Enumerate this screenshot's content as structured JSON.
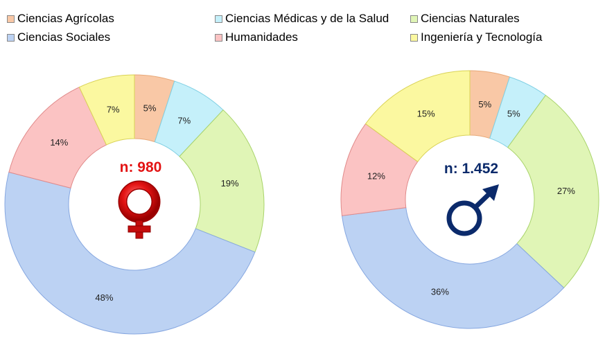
{
  "chart_data": [
    {
      "type": "pie",
      "center_label": "n: 980",
      "center_color": "#e31313",
      "symbol": "female-symbol-icon",
      "categories": [
        "Ciencias Agrícolas",
        "Ciencias Médicas y de la Salud",
        "Ciencias Naturales",
        "Ciencias Sociales",
        "Humanidades",
        "Ingeniería y Tecnología"
      ],
      "values": [
        5,
        7,
        19,
        48,
        14,
        7
      ],
      "labels": [
        "5%",
        "7%",
        "19%",
        "48%",
        "14%",
        "7%"
      ]
    },
    {
      "type": "pie",
      "center_label": "n: 1.452",
      "center_color": "#0b2a6b",
      "symbol": "male-symbol-icon",
      "categories": [
        "Ciencias Agrícolas",
        "Ciencias Médicas y de la Salud",
        "Ciencias Naturales",
        "Ciencias Sociales",
        "Humanidades",
        "Ingeniería y Tecnología"
      ],
      "values": [
        5,
        5,
        27,
        36,
        12,
        15
      ],
      "labels": [
        "5%",
        "5%",
        "27%",
        "36%",
        "12%",
        "15%"
      ]
    }
  ],
  "legend": [
    {
      "label": "Ciencias Agrícolas",
      "color": "#f9c8a6"
    },
    {
      "label": "Ciencias Médicas y de la Salud",
      "color": "#c5f0fa"
    },
    {
      "label": "Ciencias Naturales",
      "color": "#e0f5b6"
    },
    {
      "label": "Ciencias Sociales",
      "color": "#bcd2f3"
    },
    {
      "label": "Humanidades",
      "color": "#fbc3c3"
    },
    {
      "label": "Ingeniería y Tecnología",
      "color": "#fbf8a0"
    }
  ]
}
